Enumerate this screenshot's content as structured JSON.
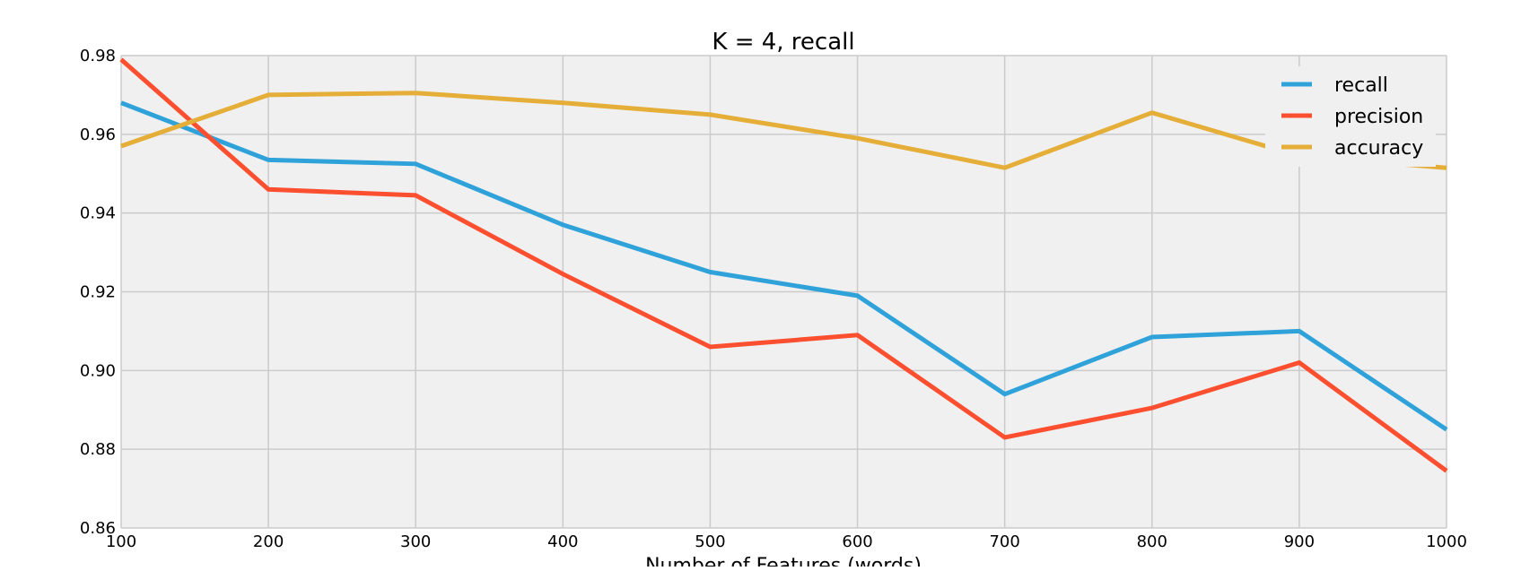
{
  "chart_data": {
    "type": "line",
    "title": "K = 4, recall",
    "xlabel": "Number of Features (words)",
    "ylabel": "",
    "x": [
      100,
      200,
      300,
      400,
      500,
      600,
      700,
      800,
      900,
      1000
    ],
    "xlim": [
      100,
      1000
    ],
    "ylim": [
      0.86,
      0.98
    ],
    "xticks": [
      "100",
      "200",
      "300",
      "400",
      "500",
      "600",
      "700",
      "800",
      "900",
      "1000"
    ],
    "yticks": [
      "0.86",
      "0.88",
      "0.90",
      "0.92",
      "0.94",
      "0.96",
      "0.98"
    ],
    "grid": true,
    "legend_position": "top-right",
    "series": [
      {
        "name": "recall",
        "color": "#30a2da",
        "values": [
          0.968,
          0.9535,
          0.9525,
          0.937,
          0.925,
          0.919,
          0.894,
          0.9085,
          0.91,
          0.885
        ]
      },
      {
        "name": "precision",
        "color": "#fc4f30",
        "values": [
          0.979,
          0.946,
          0.9445,
          0.9245,
          0.906,
          0.909,
          0.883,
          0.8905,
          0.902,
          0.8745
        ]
      },
      {
        "name": "accuracy",
        "color": "#e5ae38",
        "values": [
          0.957,
          0.97,
          0.9705,
          0.968,
          0.965,
          0.959,
          0.9515,
          0.9655,
          0.9545,
          0.9515
        ]
      }
    ]
  }
}
